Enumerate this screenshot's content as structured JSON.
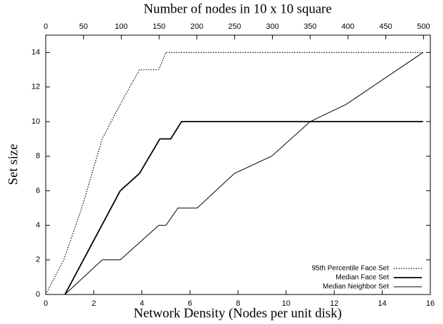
{
  "chart_data": {
    "type": "line",
    "xlabel": "Network Density (Nodes per unit disk)",
    "x2label": "Number of nodes in 10 x 10 square",
    "ylabel": "Set size",
    "xlim": [
      0,
      16
    ],
    "xticks": [
      0,
      2,
      4,
      6,
      8,
      10,
      12,
      14,
      16
    ],
    "x2lim": [
      0,
      509
    ],
    "x2ticks": [
      0,
      50,
      100,
      150,
      200,
      250,
      300,
      350,
      400,
      450,
      500
    ],
    "ylim": [
      0,
      15
    ],
    "yticks": [
      0,
      2,
      4,
      6,
      8,
      10,
      12,
      14
    ],
    "legend": "lower right",
    "series": [
      {
        "name": "95th Percentile Face Set",
        "color": "#000000",
        "style": "dotted",
        "x": [
          0,
          0.75,
          1.5,
          2.35,
          3.1,
          3.9,
          4.7,
          5.0,
          15.7
        ],
        "values": [
          0,
          2,
          5,
          9,
          11,
          13,
          13,
          14,
          14
        ]
      },
      {
        "name": "Median Face Set",
        "color": "#000000",
        "style": "thick",
        "x": [
          0.8,
          3.1,
          3.9,
          4.75,
          5.2,
          5.65,
          15.7
        ],
        "values": [
          0,
          6,
          7,
          9,
          9,
          10,
          10
        ]
      },
      {
        "name": "Median Neighbor Set",
        "color": "#000000",
        "style": "thin",
        "x": [
          0.8,
          2.35,
          3.1,
          4.7,
          5.0,
          5.5,
          6.3,
          7.85,
          9.4,
          11,
          12.5,
          15.7
        ],
        "values": [
          0,
          2,
          2,
          4,
          4,
          5,
          5,
          7,
          8,
          10,
          11,
          14
        ]
      }
    ]
  }
}
